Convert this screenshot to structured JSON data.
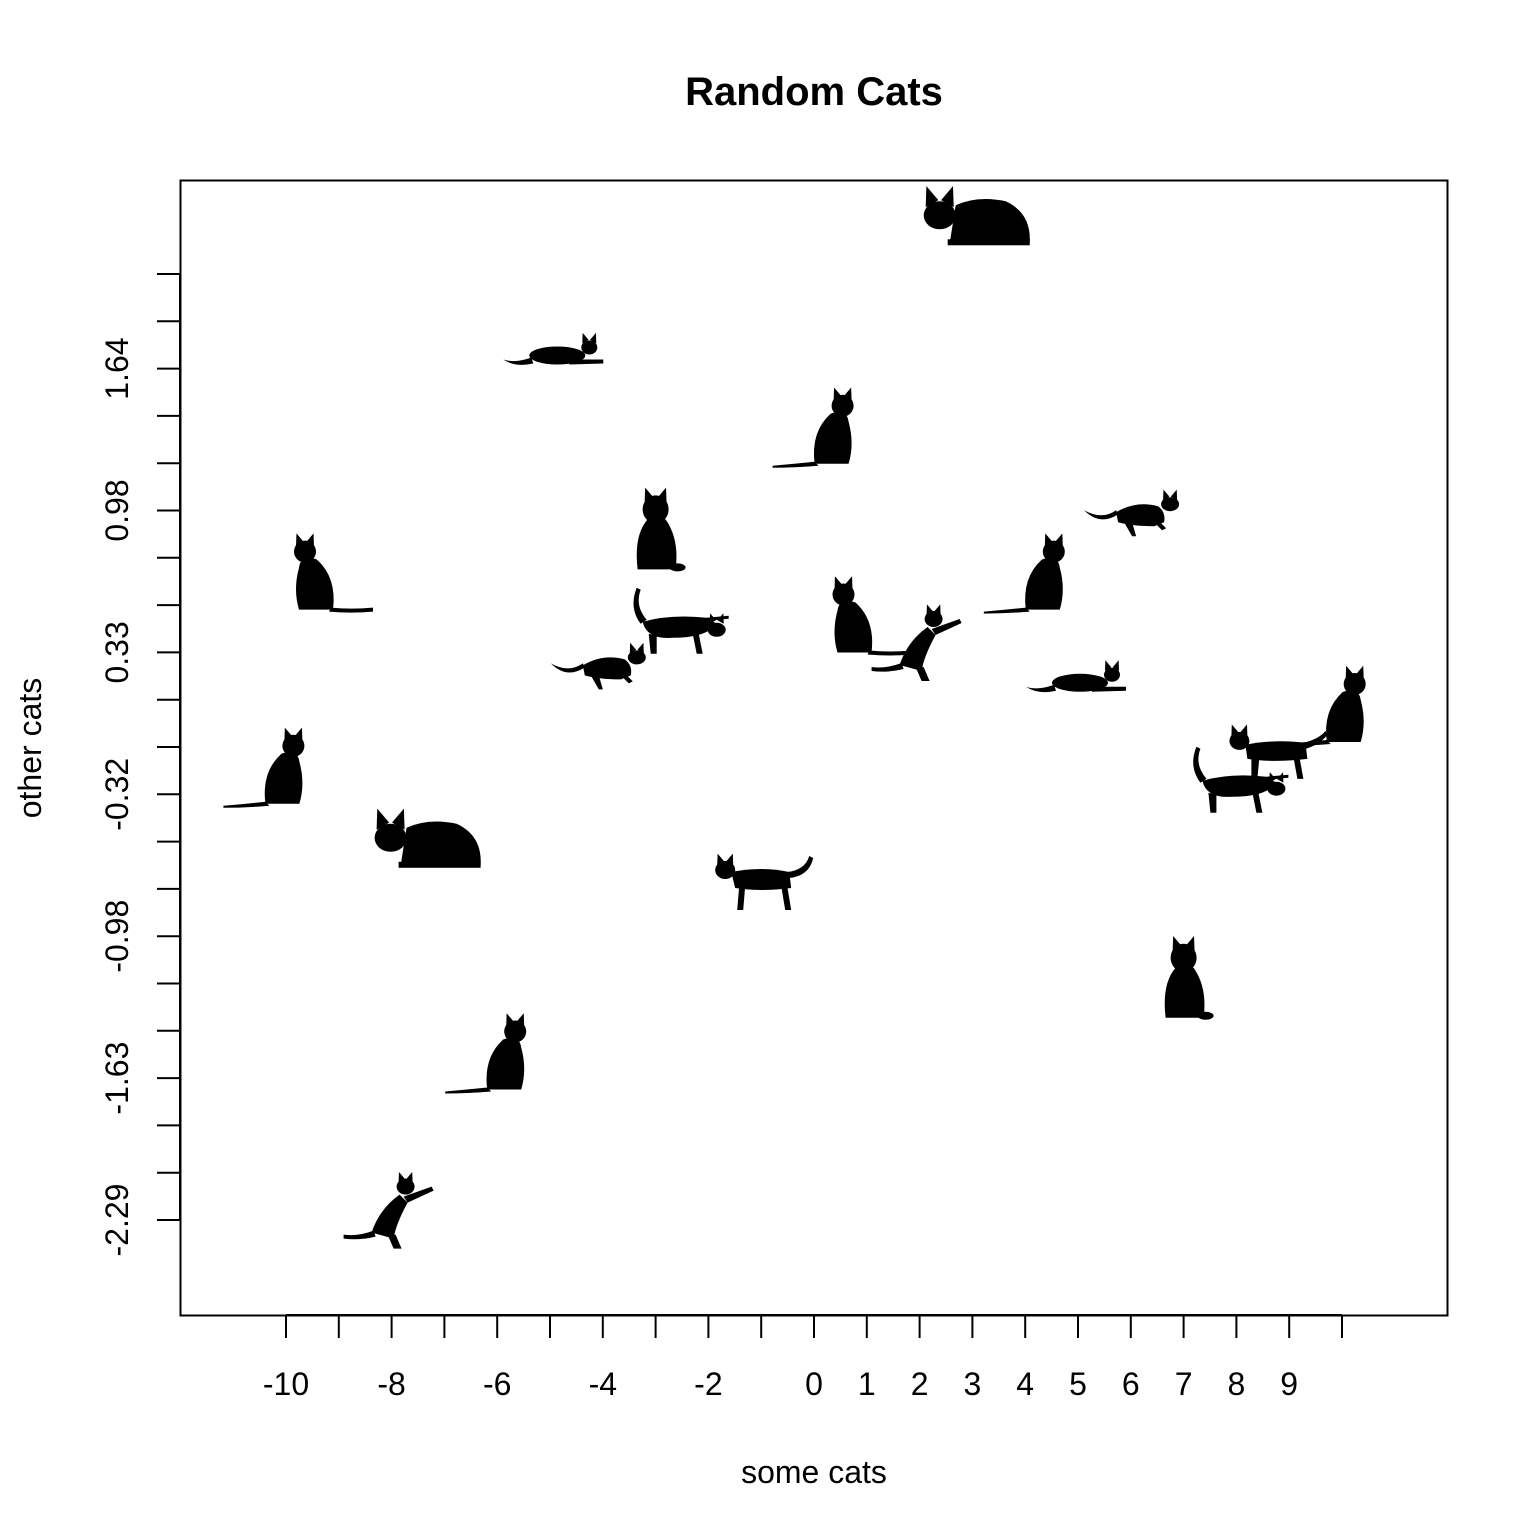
{
  "chart_data": {
    "type": "scatter",
    "title": "Random Cats",
    "xlabel": "some cats",
    "ylabel": "other cats",
    "marker": "cat-silhouette",
    "marker_color": "#000000",
    "grid": false,
    "legend": "none",
    "xlim": [
      -12,
      12
    ],
    "ylim": [
      -3.05,
      3.02
    ],
    "x_ticks": [
      -10,
      -9,
      -8,
      -7,
      -6,
      -5,
      -4,
      -3,
      -2,
      -1,
      0,
      1,
      2,
      3,
      4,
      5,
      6,
      7,
      8,
      9,
      10
    ],
    "x_tick_labels": [
      "-10",
      "",
      "-8",
      "",
      "-6",
      "",
      "-4",
      "",
      "-2",
      "",
      "0",
      "1",
      "2",
      "3",
      "4",
      "5",
      "6",
      "7",
      "8",
      "9",
      ""
    ],
    "y_ticks": [
      -2.29,
      -2.04,
      -1.88,
      -1.63,
      -1.38,
      -1.23,
      -0.98,
      -0.73,
      -0.57,
      -0.32,
      -0.07,
      0.08,
      0.33,
      0.58,
      0.73,
      0.98,
      1.23,
      1.39,
      1.64,
      1.89,
      2.14
    ],
    "y_tick_labels": [
      "-2.29",
      "",
      "",
      "-1.63",
      "",
      "",
      "-0.98",
      "",
      "",
      "-0.32",
      "",
      "",
      "0.33",
      "",
      "",
      "0.98",
      "",
      "",
      "1.64",
      "",
      ""
    ],
    "points": [
      {
        "x": 3.1,
        "y": 2.45,
        "pose": "loaf"
      },
      {
        "x": -4.9,
        "y": 1.72,
        "pose": "lying"
      },
      {
        "x": 0.2,
        "y": 1.35,
        "pose": "sitting-tail-left"
      },
      {
        "x": -3.0,
        "y": 0.88,
        "pose": "sitting-front"
      },
      {
        "x": 6.1,
        "y": 0.95,
        "pose": "stalking"
      },
      {
        "x": -9.3,
        "y": 0.68,
        "pose": "sitting-tail-right"
      },
      {
        "x": 4.2,
        "y": 0.68,
        "pose": "sitting-tail-left"
      },
      {
        "x": -2.6,
        "y": 0.46,
        "pose": "sniffing"
      },
      {
        "x": 0.9,
        "y": 0.52,
        "pose": "sitting-tail-right"
      },
      {
        "x": 2.0,
        "y": 0.39,
        "pose": "pawing"
      },
      {
        "x": -4.0,
        "y": 0.24,
        "pose": "stalking"
      },
      {
        "x": 5.0,
        "y": 0.18,
        "pose": "lying"
      },
      {
        "x": 9.9,
        "y": 0.06,
        "pose": "sitting-tail-left"
      },
      {
        "x": 8.7,
        "y": -0.08,
        "pose": "standing"
      },
      {
        "x": 8.0,
        "y": -0.28,
        "pose": "sniffing"
      },
      {
        "x": -10.2,
        "y": -0.18,
        "pose": "sitting-tail-left"
      },
      {
        "x": -7.3,
        "y": -0.55,
        "pose": "loaf"
      },
      {
        "x": -1.0,
        "y": -0.7,
        "pose": "standing-tail-up"
      },
      {
        "x": 7.0,
        "y": -1.2,
        "pose": "sitting-front"
      },
      {
        "x": -6.0,
        "y": -1.5,
        "pose": "sitting-tail-left"
      },
      {
        "x": -8.0,
        "y": -2.23,
        "pose": "pawing"
      }
    ]
  }
}
